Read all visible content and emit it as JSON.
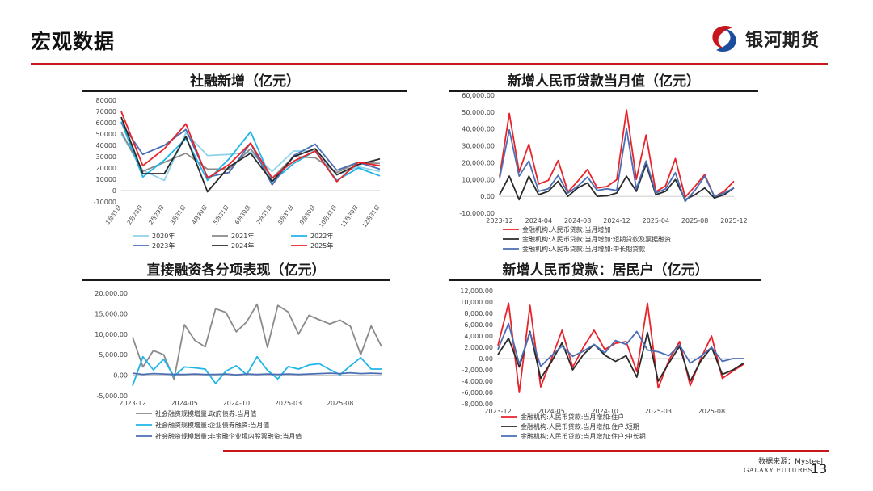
{
  "header": {
    "title": "宏观数据",
    "logo_text": "银河期货"
  },
  "colors": {
    "brand_red": "#c8161d"
  },
  "footer": {
    "source": "数据来源：Mysteel",
    "brand": "GALAXY FUTURES",
    "page_number": "13"
  },
  "chart_data": [
    {
      "id": "c1",
      "type": "line",
      "title": "社融新增（亿元）",
      "categories": [
        "1月31日",
        "2月28日",
        "2月29日",
        "3月31日",
        "4月30日",
        "5月31日",
        "6月30日",
        "7月31日",
        "8月31日",
        "9月30日",
        "10月31日",
        "11月30日",
        "12月31日"
      ],
      "ylim": [
        -10000,
        80000
      ],
      "yticks": [
        -10000,
        0,
        10000,
        20000,
        30000,
        40000,
        50000,
        60000,
        70000,
        80000
      ],
      "legend_position": "bottom",
      "series": [
        {
          "name": "2020年",
          "color": "#8fd3ea",
          "values": [
            50000,
            18000,
            9000,
            51000,
            31000,
            32000,
            34000,
            17000,
            35000,
            35000,
            14000,
            21000,
            17000
          ]
        },
        {
          "name": "2021年",
          "color": "#8a8a8a",
          "values": [
            52000,
            17000,
            25000,
            33000,
            19000,
            19000,
            37000,
            11000,
            30000,
            29000,
            16000,
            25000,
            24000
          ]
        },
        {
          "name": "2022年",
          "color": "#1fb5e8",
          "values": [
            61000,
            12000,
            27000,
            46000,
            9000,
            28000,
            52000,
            8000,
            24000,
            35000,
            9000,
            20000,
            13000
          ]
        },
        {
          "name": "2023年",
          "color": "#4a6fb5",
          "values": [
            60000,
            32000,
            40000,
            54000,
            12000,
            16000,
            42000,
            5000,
            31000,
            41000,
            18000,
            25000,
            19000
          ]
        },
        {
          "name": "2024年",
          "color": "#2a2a2a",
          "values": [
            65000,
            15000,
            15000,
            48000,
            -1000,
            21000,
            33000,
            8000,
            30000,
            37000,
            14000,
            23000,
            28000
          ]
        },
        {
          "name": "2025年",
          "color": "#e8232a",
          "values": [
            70000,
            22000,
            37000,
            59000,
            11000,
            23000,
            42000,
            11000,
            26000,
            35000,
            8000,
            25000,
            22000
          ]
        }
      ]
    },
    {
      "id": "c2",
      "type": "line",
      "title": "新增人民币贷款当月值（亿元）",
      "x_ticks": [
        "2023-12",
        "2024-04",
        "2024-08",
        "2024-12",
        "2025-04",
        "2025-08",
        "2025-12"
      ],
      "x_tick_index": [
        0,
        4,
        8,
        12,
        16,
        20,
        24
      ],
      "ylim": [
        -10000,
        60000
      ],
      "yticks": [
        "-10,000.00",
        "0.00",
        "10,000.00",
        "20,000.00",
        "30,000.00",
        "40,000.00",
        "50,000.00",
        "60,000.00"
      ],
      "ytick_values": [
        -10000,
        0,
        10000,
        20000,
        30000,
        40000,
        50000,
        60000
      ],
      "legend_position": "bottom",
      "series": [
        {
          "name": "金融机构:人民币贷款:当月增加",
          "color": "#e8232a",
          "values": [
            11700,
            49200,
            14500,
            31000,
            7300,
            9500,
            21300,
            2600,
            9000,
            16000,
            5000,
            5800,
            9900,
            51300,
            10100,
            36400,
            2800,
            6200,
            22400,
            -500,
            5900,
            12900,
            -200,
            3000,
            9000
          ]
        },
        {
          "name": "金融机构:人民币贷款:当月增加:短期贷款及票据融资",
          "color": "#2a2a2a",
          "values": [
            1000,
            12000,
            -2000,
            12000,
            1000,
            3000,
            9000,
            0,
            5000,
            8000,
            0,
            300,
            2000,
            12000,
            3000,
            19000,
            1000,
            3000,
            10000,
            -2000,
            1000,
            5000,
            -1000,
            1000,
            5000
          ]
        },
        {
          "name": "金融机构:人民币贷款:当月增加:中长期贷款",
          "color": "#4a6fb5",
          "values": [
            10500,
            39500,
            12000,
            21000,
            3000,
            4500,
            12500,
            2000,
            6000,
            11500,
            3500,
            4500,
            3500,
            40000,
            4500,
            21000,
            2000,
            4500,
            14000,
            -3000,
            3500,
            12000,
            0,
            2000,
            5000
          ]
        }
      ]
    },
    {
      "id": "c3",
      "type": "line",
      "title": "直接融资各分项表现（亿元）",
      "x_ticks": [
        "2023-12",
        "2024-05",
        "2024-10",
        "2025-03",
        "2025-08"
      ],
      "x_tick_index": [
        0,
        5,
        10,
        15,
        20
      ],
      "ylim": [
        -5000,
        20000
      ],
      "yticks": [
        "-5,000.00",
        "0.00",
        "5,000.00",
        "10,000.00",
        "15,000.00",
        "20,000.00"
      ],
      "ytick_values": [
        -5000,
        0,
        5000,
        10000,
        15000,
        20000
      ],
      "legend_position": "bottom",
      "series": [
        {
          "name": "社会融资规模增量:政府债券:当月值",
          "color": "#8a8a8a",
          "values": [
            9300,
            2000,
            6000,
            5000,
            -1000,
            12300,
            8500,
            6900,
            16200,
            15300,
            10600,
            13000,
            17300,
            6800,
            17000,
            15400,
            10000,
            14600,
            13500,
            12500,
            13400,
            11900,
            5000,
            12000,
            7000
          ]
        },
        {
          "name": "社会融资规模增量:企业债券融资:当月值",
          "color": "#1fb5e8",
          "values": [
            -2600,
            4500,
            1300,
            3900,
            -300,
            2000,
            1800,
            1500,
            -2000,
            1000,
            2300,
            100,
            4500,
            1200,
            -900,
            2100,
            1500,
            2500,
            2800,
            1400,
            100,
            2300,
            4300,
            1500,
            1500
          ]
        },
        {
          "name": "社会融资规模增量:非金融企业境内股票融资:当月值",
          "color": "#4a6fb5",
          "values": [
            500,
            200,
            400,
            300,
            200,
            200,
            300,
            200,
            200,
            300,
            100,
            300,
            200,
            300,
            200,
            300,
            200,
            300,
            400,
            500,
            400,
            600,
            400,
            500,
            400
          ]
        }
      ]
    },
    {
      "id": "c4",
      "type": "line",
      "title": "新增人民币贷款：居民户（亿元）",
      "x_ticks": [
        "2023-12",
        "2024-05",
        "2024-10",
        "2025-03",
        "2025-08"
      ],
      "x_tick_index": [
        0,
        5,
        10,
        15,
        20
      ],
      "ylim": [
        -8000,
        12000
      ],
      "yticks": [
        "-8,000.00",
        "-6,000.00",
        "-4,000.00",
        "-2,000.00",
        "0.00",
        "2,000.00",
        "4,000.00",
        "6,000.00",
        "8,000.00",
        "10,000.00",
        "12,000.00"
      ],
      "ytick_values": [
        -8000,
        -6000,
        -4000,
        -2000,
        0,
        2000,
        4000,
        6000,
        8000,
        10000,
        12000
      ],
      "legend_position": "bottom",
      "series": [
        {
          "name": "金融机构:人民币贷款:当月增加:住户",
          "color": "#e8232a",
          "values": [
            2300,
            9800,
            -6000,
            9400,
            -5000,
            -100,
            5000,
            -1500,
            2000,
            5000,
            1600,
            2700,
            3000,
            -2300,
            9800,
            -5200,
            -300,
            3000,
            -4800,
            0,
            4000,
            -3500,
            -2200,
            -1000
          ]
        },
        {
          "name": "金融机构:人民币贷款:当月增加:住户:短期",
          "color": "#2a2a2a",
          "values": [
            700,
            3600,
            -1500,
            4800,
            -3500,
            -600,
            2800,
            -2000,
            700,
            2500,
            600,
            -500,
            500,
            -3300,
            4600,
            -4000,
            -800,
            2200,
            -4000,
            -400,
            2000,
            -2800,
            -2000,
            -800
          ]
        },
        {
          "name": "金融机构:人民币贷款:当月增加:住户:中长期",
          "color": "#4a6fb5",
          "values": [
            1600,
            6200,
            -1000,
            4600,
            -1400,
            500,
            2200,
            400,
            1300,
            2500,
            1000,
            3200,
            2500,
            4800,
            1500,
            1200,
            500,
            2400,
            -800,
            400,
            2000,
            -500,
            0,
            0
          ]
        }
      ]
    }
  ]
}
